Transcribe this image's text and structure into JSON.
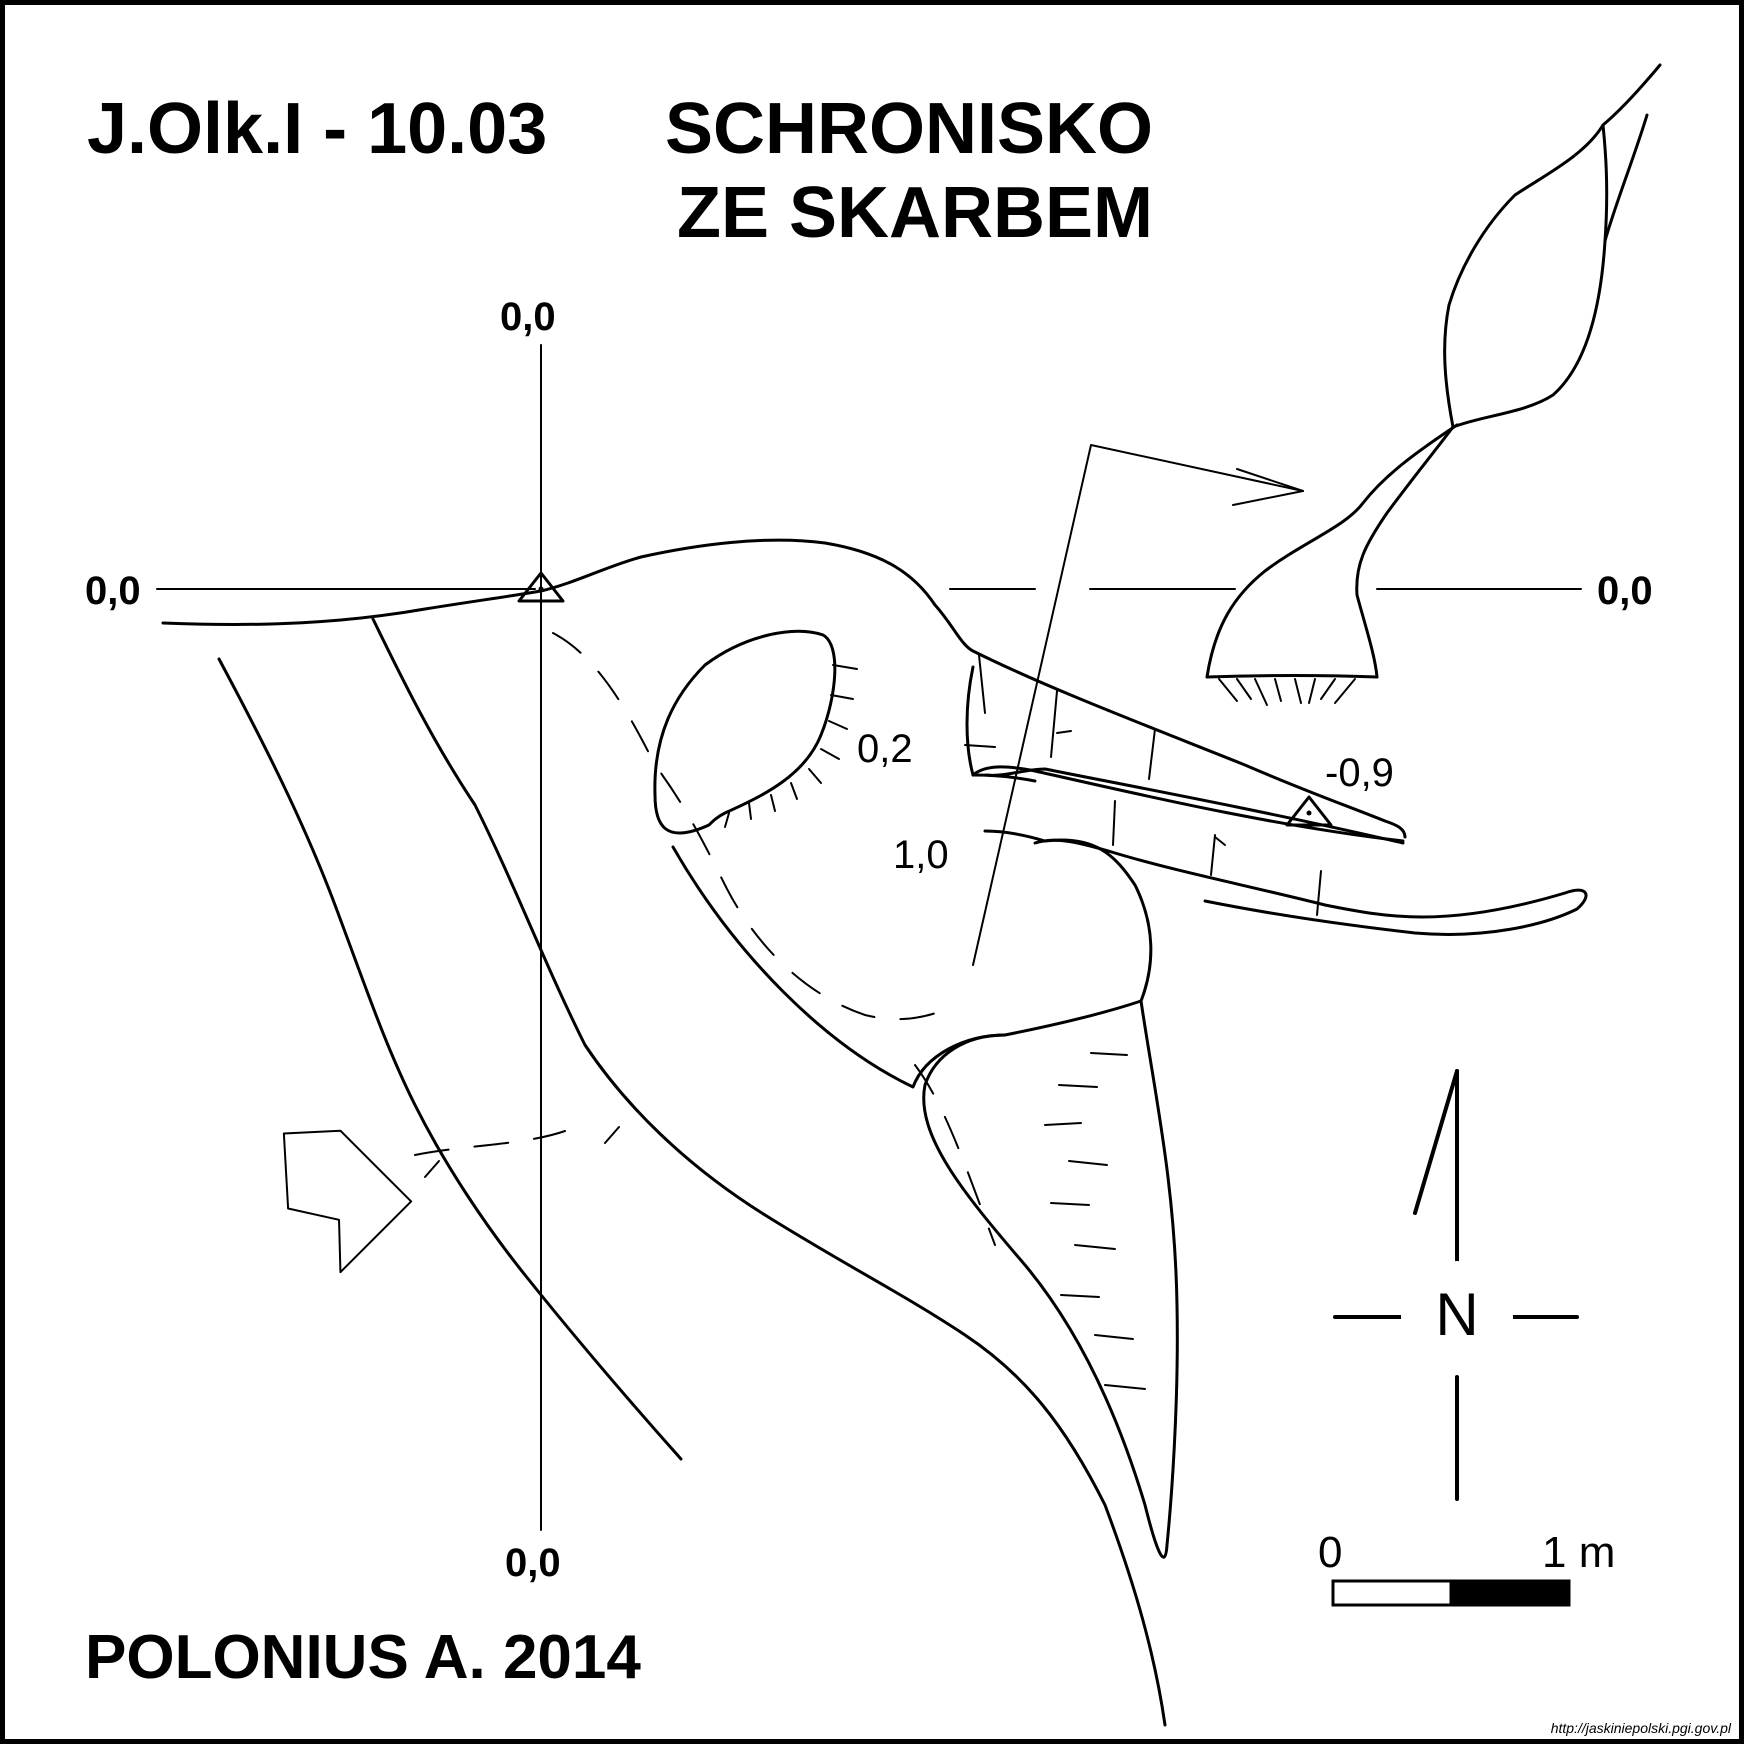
{
  "title": {
    "code": "J.Olk.I - 10.03",
    "name_line1": "SCHRONISKO",
    "name_line2": "ZE SKARBEM"
  },
  "reference_axes": {
    "top": "0,0",
    "left": "0,0",
    "right": "0,0",
    "bottom": "0,0"
  },
  "depth_labels": {
    "d1": "0,2",
    "d2": "-0,9",
    "d3": "1,0"
  },
  "compass": {
    "label": "N"
  },
  "scale_bar": {
    "start": "0",
    "end": "1 m"
  },
  "author": "POLONIUS A. 2014",
  "credit": "http://jaskiniepolski.pgi.gov.pl",
  "icons": [
    "entrance-arrow-icon",
    "north-compass-icon",
    "survey-station-icon"
  ],
  "colors": {
    "ink": "#000000",
    "paper": "#ffffff"
  }
}
